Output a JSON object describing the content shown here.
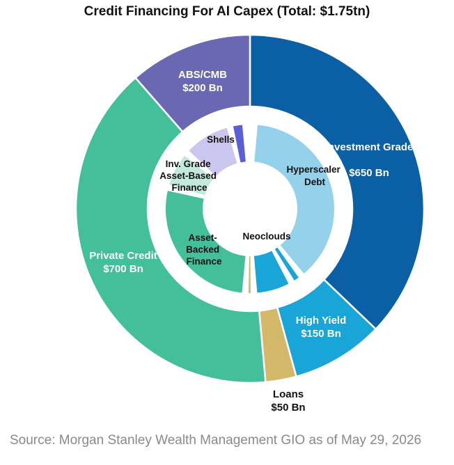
{
  "chart_data": {
    "type": "pie",
    "title": "Credit Financing For AI Capex (Total: $1.75tn)",
    "source": "Source: Morgan Stanley Wealth Management GIO as of May 29, 2026",
    "outer_ring": {
      "unit": "$ Bn",
      "slices": [
        {
          "name": "Investment Grade",
          "amount_label": "$650 Bn",
          "value": 650,
          "color": "#0b5fa5"
        },
        {
          "name": "High Yield",
          "amount_label": "$150 Bn",
          "value": 150,
          "color": "#1aa5d8"
        },
        {
          "name": "Loans",
          "amount_label": "$50 Bn",
          "value": 50,
          "color": "#d4b86a"
        },
        {
          "name": "Private Credit",
          "amount_label": "$700 Bn",
          "value": 700,
          "color": "#43bf9a"
        },
        {
          "name": "ABS/CMB",
          "amount_label": "$200 Bn",
          "value": 200,
          "color": "#6b68b3"
        }
      ]
    },
    "inner_ring": {
      "segments": [
        {
          "name": "Hyperscaler Debt",
          "value": 520,
          "color": "#94d1ea"
        },
        {
          "name": "",
          "value": 30,
          "color": "#1aa5d8"
        },
        {
          "name": "Neoclouds",
          "value": 100,
          "color": "#1aa5d8"
        },
        {
          "name": "",
          "value": 22,
          "color": "#d4b86a"
        },
        {
          "name": "Asset-Backed Finance",
          "value": 378,
          "color": "#43bf9a"
        },
        {
          "name": "Inv. Grade Asset-Based Finance",
          "value": 100,
          "color": "#c2eadc"
        },
        {
          "name": "Shells",
          "value": 130,
          "color": "#cac6ee"
        },
        {
          "name": "",
          "value": 40,
          "color": "#5b5ed6"
        }
      ]
    },
    "legend": "none"
  }
}
